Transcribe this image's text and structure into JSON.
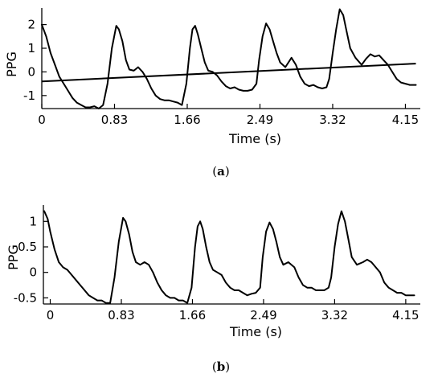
{
  "chart_data": [
    {
      "type": "line",
      "panel_label": "(a)",
      "panel_letter": "a",
      "xlabel": "Time (s)",
      "ylabel": "PPG",
      "xlim": [
        0,
        4.32
      ],
      "ylim": [
        -1.55,
        2.7
      ],
      "xticks": [
        "0",
        "0.83",
        "1.66",
        "2.49",
        "3.32",
        "4.15"
      ],
      "xtick_values": [
        0,
        0.83,
        1.66,
        2.49,
        3.32,
        4.15
      ],
      "yticks": [
        "2",
        "1",
        "0",
        "-1"
      ],
      "ytick_values": [
        2,
        1,
        0,
        -1
      ],
      "grid": false,
      "series": [
        {
          "x": [
            0.0,
            0.05,
            0.1,
            0.15,
            0.2,
            0.25,
            0.3,
            0.35,
            0.4,
            0.45,
            0.5,
            0.55,
            0.6,
            0.65,
            0.7,
            0.75,
            0.8,
            0.85,
            0.88,
            0.92,
            0.96,
            1.0,
            1.05,
            1.1,
            1.15,
            1.2,
            1.25,
            1.3,
            1.35,
            1.4,
            1.45,
            1.5,
            1.55,
            1.6,
            1.65,
            1.69,
            1.72,
            1.75,
            1.78,
            1.82,
            1.86,
            1.9,
            1.95,
            2.0,
            2.05,
            2.1,
            2.15,
            2.2,
            2.25,
            2.3,
            2.35,
            2.4,
            2.45,
            2.48,
            2.52,
            2.56,
            2.6,
            2.64,
            2.68,
            2.72,
            2.78,
            2.85,
            2.9,
            2.95,
            3.0,
            3.05,
            3.1,
            3.15,
            3.2,
            3.25,
            3.28,
            3.32,
            3.36,
            3.4,
            3.44,
            3.48,
            3.52,
            3.58,
            3.65,
            3.7,
            3.75,
            3.8,
            3.85,
            3.9,
            3.95,
            4.0,
            4.05,
            4.1,
            4.15,
            4.2,
            4.27
          ],
          "y": [
            2.0,
            1.5,
            0.8,
            0.3,
            -0.2,
            -0.5,
            -0.8,
            -1.1,
            -1.3,
            -1.4,
            -1.5,
            -1.5,
            -1.45,
            -1.55,
            -1.4,
            -0.5,
            1.0,
            1.95,
            1.8,
            1.3,
            0.5,
            0.1,
            0.05,
            0.2,
            0.0,
            -0.3,
            -0.7,
            -1.0,
            -1.15,
            -1.2,
            -1.2,
            -1.25,
            -1.3,
            -1.4,
            -0.5,
            1.0,
            1.8,
            1.95,
            1.6,
            1.0,
            0.4,
            0.05,
            0.0,
            -0.15,
            -0.4,
            -0.6,
            -0.7,
            -0.65,
            -0.75,
            -0.8,
            -0.8,
            -0.75,
            -0.5,
            0.5,
            1.5,
            2.05,
            1.8,
            1.3,
            0.8,
            0.4,
            0.2,
            0.6,
            0.3,
            -0.2,
            -0.5,
            -0.6,
            -0.55,
            -0.65,
            -0.7,
            -0.65,
            -0.3,
            0.8,
            1.8,
            2.65,
            2.4,
            1.7,
            1.0,
            0.6,
            0.3,
            0.55,
            0.75,
            0.65,
            0.7,
            0.5,
            0.3,
            0.0,
            -0.3,
            -0.45,
            -0.5,
            -0.55,
            -0.55
          ]
        },
        {
          "x": [
            0.0,
            4.27
          ],
          "y": [
            -0.4,
            0.35
          ]
        }
      ]
    },
    {
      "type": "line",
      "panel_label": "(b)",
      "panel_letter": "b",
      "xlabel": "Time (s)",
      "ylabel": "PPG",
      "xlim": [
        -0.08,
        4.32
      ],
      "ylim": [
        -0.62,
        1.32
      ],
      "xticks": [
        "0",
        "0.83",
        "1.66",
        "2.49",
        "3.32",
        "4.15"
      ],
      "xtick_values": [
        0,
        0.83,
        1.66,
        2.49,
        3.32,
        4.15
      ],
      "yticks": [
        "1",
        "0.5",
        "0",
        "-0.5"
      ],
      "ytick_values": [
        1,
        0.5,
        0,
        -0.5
      ],
      "grid": false,
      "series": [
        {
          "x": [
            -0.07,
            -0.03,
            0.0,
            0.05,
            0.1,
            0.15,
            0.2,
            0.25,
            0.3,
            0.35,
            0.4,
            0.45,
            0.5,
            0.55,
            0.6,
            0.65,
            0.7,
            0.75,
            0.8,
            0.85,
            0.88,
            0.92,
            0.96,
            1.0,
            1.05,
            1.1,
            1.15,
            1.2,
            1.25,
            1.3,
            1.35,
            1.4,
            1.45,
            1.5,
            1.55,
            1.6,
            1.65,
            1.69,
            1.72,
            1.75,
            1.78,
            1.82,
            1.86,
            1.9,
            1.95,
            2.0,
            2.05,
            2.1,
            2.15,
            2.2,
            2.25,
            2.3,
            2.35,
            2.4,
            2.45,
            2.48,
            2.52,
            2.56,
            2.6,
            2.64,
            2.68,
            2.72,
            2.78,
            2.85,
            2.9,
            2.95,
            3.0,
            3.05,
            3.1,
            3.15,
            3.2,
            3.25,
            3.28,
            3.32,
            3.36,
            3.4,
            3.44,
            3.48,
            3.52,
            3.58,
            3.65,
            3.7,
            3.75,
            3.8,
            3.85,
            3.9,
            3.95,
            4.0,
            4.05,
            4.1,
            4.15,
            4.2,
            4.25
          ],
          "y": [
            1.2,
            1.05,
            0.8,
            0.45,
            0.2,
            0.1,
            0.05,
            -0.05,
            -0.15,
            -0.25,
            -0.35,
            -0.45,
            -0.5,
            -0.55,
            -0.55,
            -0.6,
            -0.6,
            -0.1,
            0.6,
            1.07,
            1.0,
            0.75,
            0.4,
            0.2,
            0.15,
            0.2,
            0.15,
            0.0,
            -0.2,
            -0.35,
            -0.45,
            -0.5,
            -0.5,
            -0.55,
            -0.55,
            -0.6,
            -0.3,
            0.5,
            0.9,
            1.0,
            0.85,
            0.5,
            0.2,
            0.05,
            0.0,
            -0.05,
            -0.2,
            -0.3,
            -0.35,
            -0.35,
            -0.4,
            -0.45,
            -0.42,
            -0.4,
            -0.3,
            0.3,
            0.8,
            0.98,
            0.85,
            0.6,
            0.3,
            0.15,
            0.2,
            0.1,
            -0.1,
            -0.25,
            -0.3,
            -0.3,
            -0.35,
            -0.35,
            -0.35,
            -0.3,
            -0.1,
            0.5,
            0.95,
            1.2,
            1.0,
            0.65,
            0.3,
            0.15,
            0.2,
            0.25,
            0.2,
            0.1,
            0.0,
            -0.2,
            -0.3,
            -0.35,
            -0.4,
            -0.4,
            -0.45,
            -0.45,
            -0.45
          ]
        }
      ]
    }
  ]
}
